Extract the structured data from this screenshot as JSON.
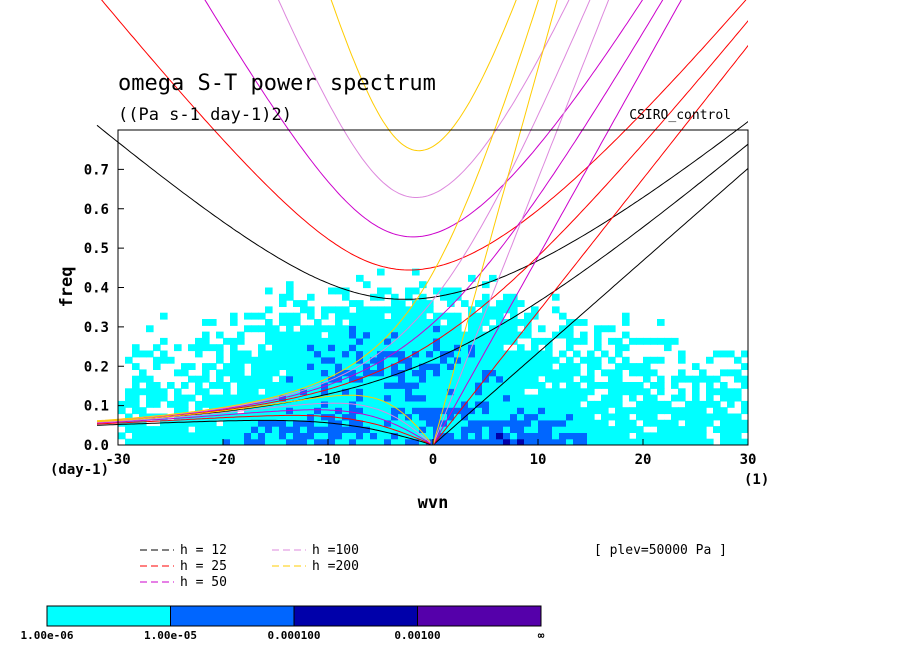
{
  "chart_data": {
    "type": "heatmap",
    "title": "omega S-T power spectrum",
    "subtitle": "((Pa s-1 day-1)2)",
    "model": "CSIRO_control",
    "level_note": "[ plev=50000 Pa ]",
    "xlabel": "wvn",
    "ylabel": "freq",
    "x_unit": "(1)",
    "y_unit": "(day-1)",
    "xlim": [
      -30,
      30
    ],
    "ylim": [
      0,
      0.8
    ],
    "xticks": [
      -30,
      -20,
      -10,
      0,
      10,
      20,
      30
    ],
    "yticks": [
      0.0,
      0.1,
      0.2,
      0.3,
      0.4,
      0.5,
      0.6,
      0.7
    ],
    "dispersion_curves": [
      {
        "label": "h = 12",
        "h": 12,
        "color": "#000000"
      },
      {
        "label": "h = 25",
        "h": 25,
        "color": "#ff0000"
      },
      {
        "label": "h = 50",
        "h": 50,
        "color": "#cc00cc"
      },
      {
        "label": "h =100",
        "h": 100,
        "color": "#dd88dd"
      },
      {
        "label": "h =200",
        "h": 200,
        "color": "#ffcc00"
      }
    ],
    "colorbar": {
      "levels": [
        "1.00e-06",
        "1.00e-05",
        "0.000100",
        "0.00100",
        "∞"
      ],
      "colors": [
        "#00ffff",
        "#0066ff",
        "#0000aa",
        "#5500aa"
      ]
    }
  }
}
